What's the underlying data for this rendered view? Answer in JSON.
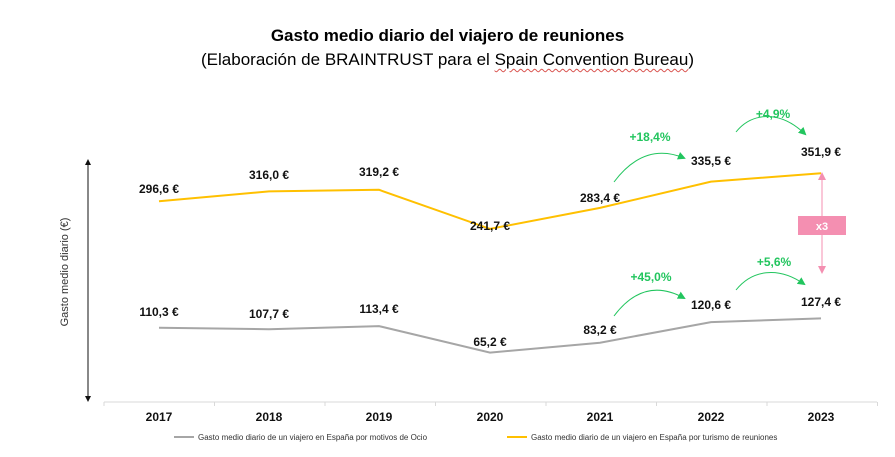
{
  "chart_data": {
    "type": "line",
    "title": "Gasto medio diario del viajero de reuniones",
    "subtitle_prefix": "(Elaboración de BRAINTRUST para el ",
    "subtitle_highlight": "Spain Convention Bureau",
    "subtitle_suffix": ")",
    "ylabel": "Gasto medio diario (€)",
    "categories": [
      "2017",
      "2018",
      "2019",
      "2020",
      "2021",
      "2022",
      "2023"
    ],
    "ylim": [
      0,
      400
    ],
    "grid": false,
    "legend_position": "bottom",
    "series": [
      {
        "name": "Gasto medio diario de un viajero en España por motivos de Ocio",
        "color": "#a6a6a6",
        "values": [
          110.3,
          107.7,
          113.4,
          65.2,
          83.2,
          120.6,
          127.4
        ],
        "labels": [
          "110,3 €",
          "107,7 €",
          "113,4 €",
          "65,2 €",
          "83,2 €",
          "120,6 €",
          "127,4 €"
        ]
      },
      {
        "name": "Gasto medio diario de un viajero en España por turismo de reuniones",
        "color": "#ffc000",
        "values": [
          296.6,
          316.0,
          319.2,
          241.7,
          283.4,
          335.5,
          351.9
        ],
        "labels": [
          "296,6 €",
          "316,0 €",
          "319,2 €",
          "241,7 €",
          "283,4 €",
          "335,5 €",
          "351,9 €"
        ]
      }
    ],
    "annotations": [
      {
        "text": "+18,4%",
        "series": 1,
        "from": 4,
        "to": 5,
        "color": "#22c55e"
      },
      {
        "text": "+4,9%",
        "series": 1,
        "from": 5,
        "to": 6,
        "color": "#22c55e"
      },
      {
        "text": "+45,0%",
        "series": 0,
        "from": 4,
        "to": 5,
        "color": "#22c55e"
      },
      {
        "text": "+5,6%",
        "series": 0,
        "from": 5,
        "to": 6,
        "color": "#22c55e"
      }
    ],
    "ratio_badge": {
      "text": "x3",
      "color": "#f48fb1"
    }
  }
}
